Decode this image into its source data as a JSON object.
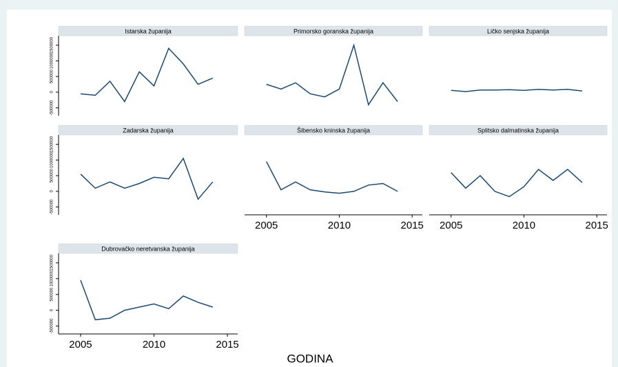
{
  "x_axis_label": "GODINA",
  "chart_data": [
    {
      "type": "line",
      "title": "Istarska županija",
      "x": [
        2005,
        2006,
        2007,
        2008,
        2009,
        2010,
        2011,
        2012,
        2013,
        2014
      ],
      "values": [
        -50000,
        -100000,
        350000,
        -300000,
        650000,
        200000,
        1400000,
        900000,
        250000,
        450000
      ],
      "color": "#1a476f",
      "xlim": [
        2003.5,
        2015.7
      ],
      "ylim": [
        -750000,
        1800000
      ],
      "yticks": [
        -500000,
        0,
        500000,
        1000000,
        1500000
      ]
    },
    {
      "type": "line",
      "title": "Primorsko goranska županija",
      "x": [
        2005,
        2006,
        2007,
        2008,
        2009,
        2010,
        2011,
        2012,
        2013,
        2014
      ],
      "values": [
        250000,
        100000,
        300000,
        -50000,
        -150000,
        100000,
        1500000,
        -400000,
        300000,
        -300000
      ],
      "color": "#1a476f",
      "xlim": [
        2003.5,
        2015.7
      ],
      "ylim": [
        -750000,
        1800000
      ]
    },
    {
      "type": "line",
      "title": "Ličko senjska županija",
      "x": [
        2005,
        2006,
        2007,
        2008,
        2009,
        2010,
        2011,
        2012,
        2013,
        2014
      ],
      "values": [
        60000,
        20000,
        70000,
        70000,
        80000,
        60000,
        90000,
        70000,
        90000,
        40000
      ],
      "color": "#1a476f",
      "xlim": [
        2003.5,
        2015.7
      ],
      "ylim": [
        -750000,
        1800000
      ]
    },
    {
      "type": "line",
      "title": "Zadarska županija",
      "x": [
        2005,
        2006,
        2007,
        2008,
        2009,
        2010,
        2011,
        2012,
        2013,
        2014
      ],
      "values": [
        550000,
        100000,
        300000,
        100000,
        250000,
        450000,
        400000,
        1050000,
        -250000,
        300000
      ],
      "color": "#1a476f",
      "xlim": [
        2003.5,
        2015.7
      ],
      "ylim": [
        -750000,
        1800000
      ],
      "yticks": [
        -500000,
        0,
        500000,
        1000000,
        1500000
      ]
    },
    {
      "type": "line",
      "title": "Šibensko kninska županija",
      "x": [
        2005,
        2006,
        2007,
        2008,
        2009,
        2010,
        2011,
        2012,
        2013,
        2014
      ],
      "values": [
        950000,
        50000,
        300000,
        50000,
        -20000,
        -60000,
        0,
        200000,
        250000,
        0
      ],
      "color": "#1a476f",
      "xlim": [
        2003.5,
        2015.7
      ],
      "ylim": [
        -750000,
        1800000
      ],
      "xticks": [
        2005,
        2010,
        2015
      ]
    },
    {
      "type": "line",
      "title": "Splitsko dalmatinska županija",
      "x": [
        2005,
        2006,
        2007,
        2008,
        2009,
        2010,
        2011,
        2012,
        2013,
        2014
      ],
      "values": [
        600000,
        100000,
        500000,
        0,
        -170000,
        150000,
        700000,
        350000,
        700000,
        280000
      ],
      "color": "#1a476f",
      "xlim": [
        2003.5,
        2015.7
      ],
      "ylim": [
        -750000,
        1800000
      ],
      "xticks": [
        2005,
        2010,
        2015
      ]
    },
    {
      "type": "line",
      "title": "Dubrovačko neretvanska županija",
      "x": [
        2005,
        2006,
        2007,
        2008,
        2009,
        2010,
        2011,
        2012,
        2013,
        2014
      ],
      "values": [
        950000,
        -300000,
        -250000,
        0,
        100000,
        200000,
        50000,
        450000,
        250000,
        100000
      ],
      "color": "#1a476f",
      "xlim": [
        2003.5,
        2015.7
      ],
      "ylim": [
        -750000,
        1800000
      ],
      "yticks": [
        -500000,
        0,
        500000,
        1000000,
        1500000
      ],
      "xticks": [
        2005,
        2010,
        2015
      ]
    }
  ]
}
